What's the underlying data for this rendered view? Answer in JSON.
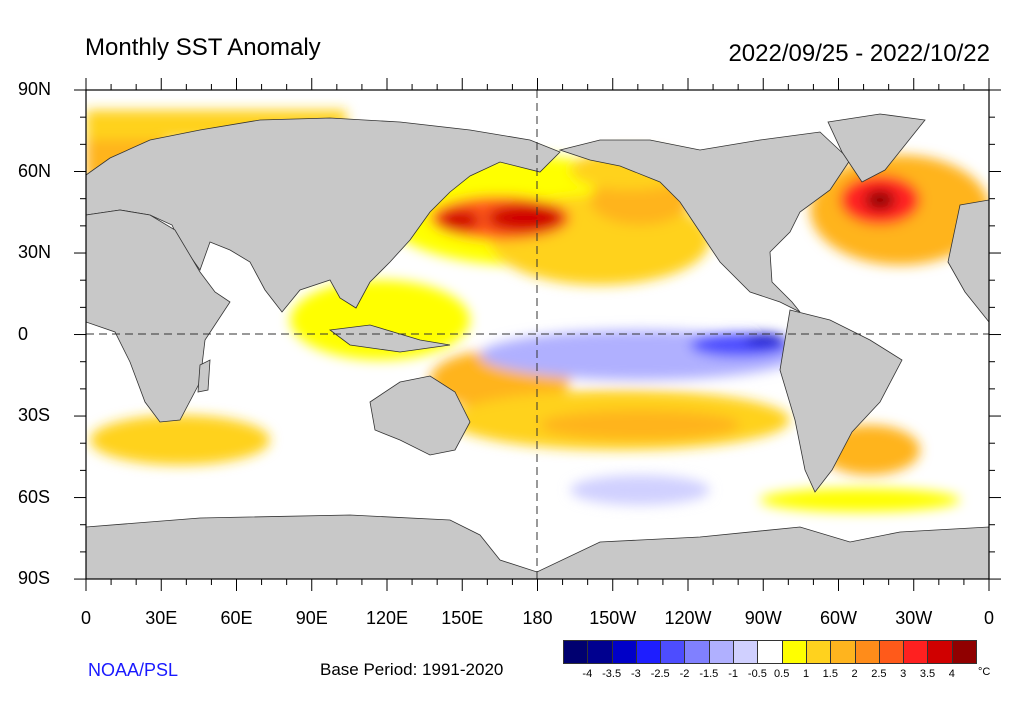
{
  "title": "Monthly SST Anomaly",
  "date_range": "2022/09/25 - 2022/10/22",
  "credit": "NOAA/PSL",
  "base_period": "Base Period: 1991-2020",
  "map": {
    "projection": "equirectangular",
    "center_longitude": 180,
    "reference_lines": [
      "equator",
      "dateline"
    ],
    "lat_labels": [
      "90N",
      "60N",
      "30N",
      "0",
      "30S",
      "60S",
      "90S"
    ],
    "lon_labels": [
      "0",
      "30E",
      "60E",
      "90E",
      "120E",
      "150E",
      "180",
      "150W",
      "120W",
      "90W",
      "60W",
      "30W",
      "0"
    ],
    "land_color": "#c8c8c8"
  },
  "colorbar": {
    "unit": "°C",
    "labels": [
      "-4",
      "-3.5",
      "-3",
      "-2.5",
      "-2",
      "-1.5",
      "-1",
      "-0.5",
      "0.5",
      "1",
      "1.5",
      "2",
      "2.5",
      "3",
      "3.5",
      "4"
    ],
    "colors": [
      "#000070",
      "#00008f",
      "#0000c8",
      "#1e1eff",
      "#4d4dff",
      "#8080ff",
      "#b0b0ff",
      "#d0d0ff",
      "#ffffff",
      "#ffff00",
      "#ffd21e",
      "#ffb41e",
      "#ff8c1a",
      "#ff5a1a",
      "#ff2020",
      "#d00000",
      "#900000"
    ]
  }
}
